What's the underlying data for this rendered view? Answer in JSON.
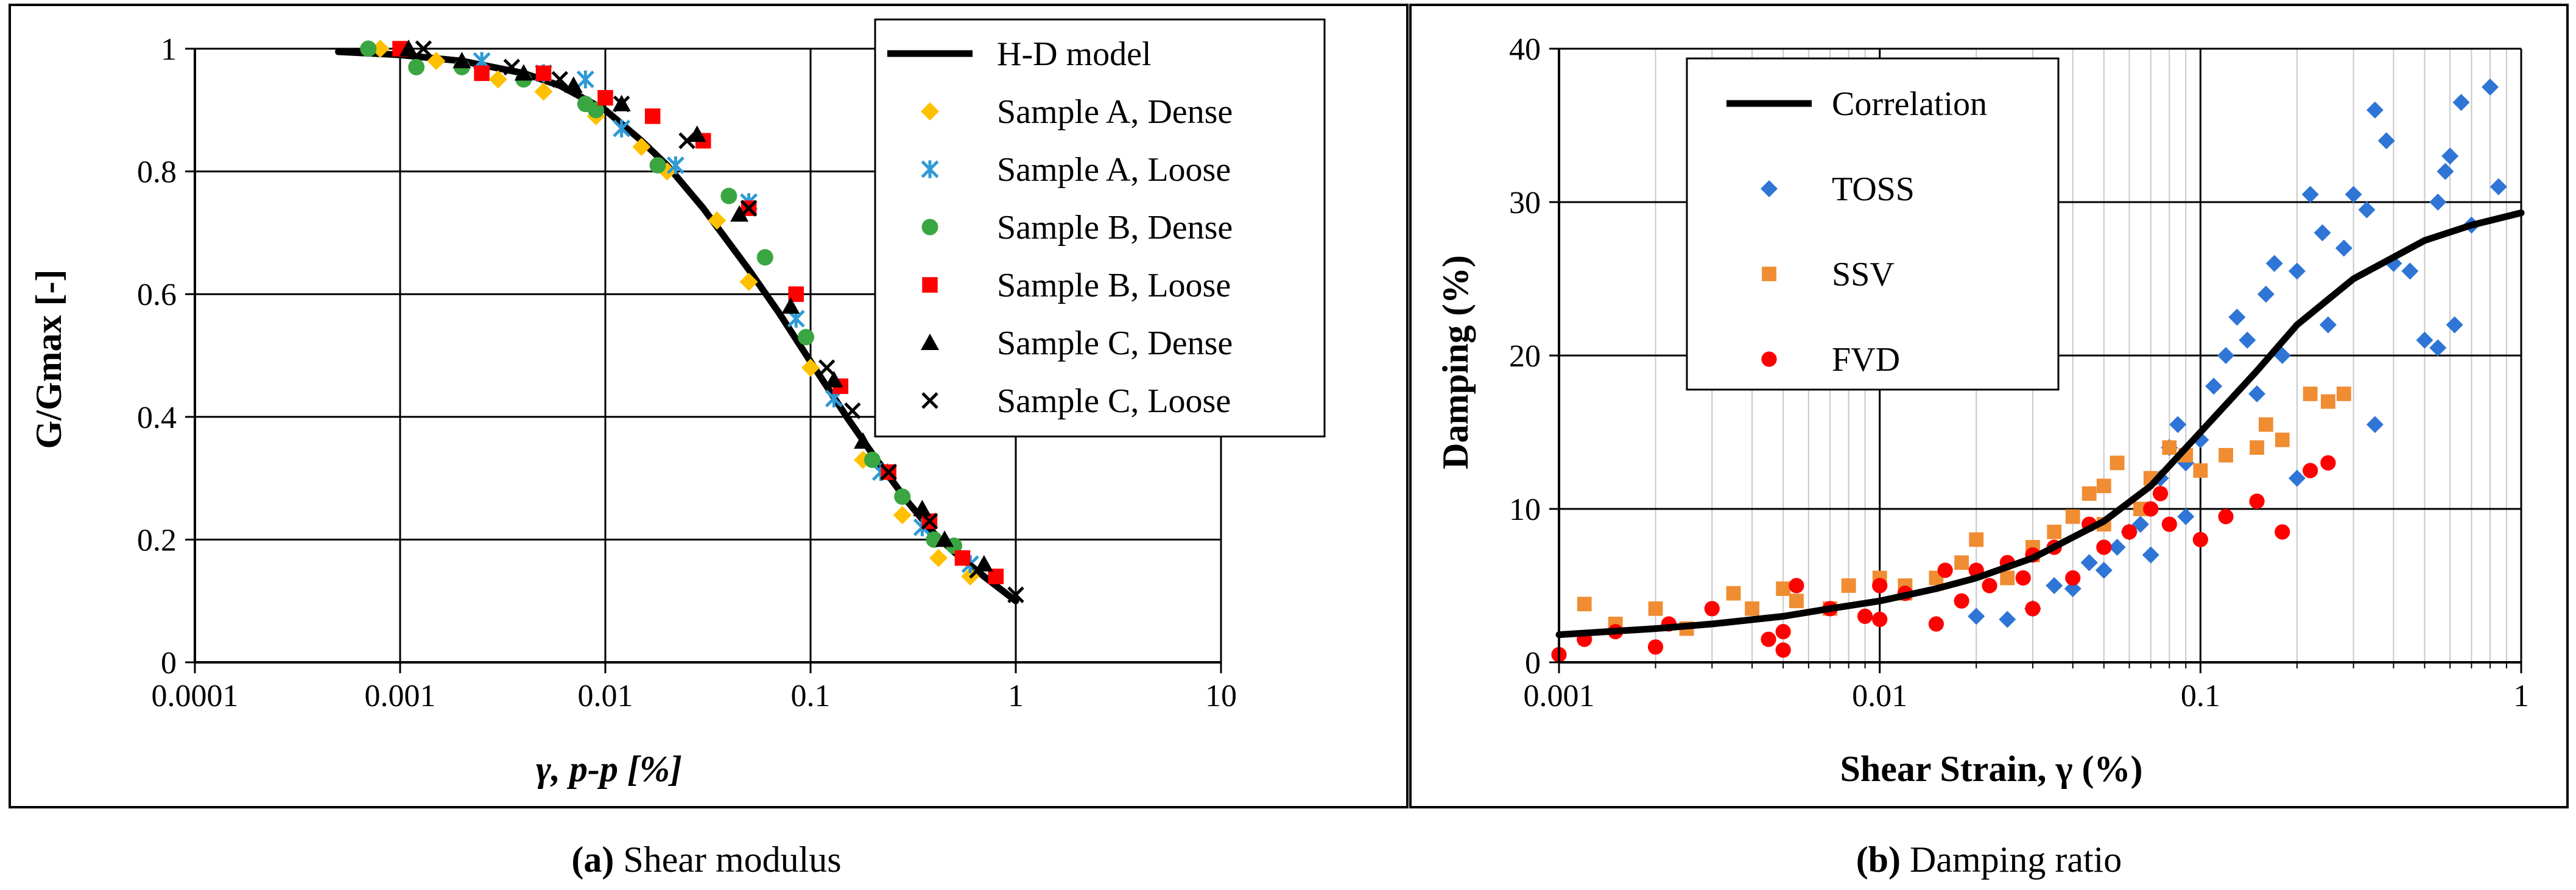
{
  "panels": [
    {
      "caption_letter": "(a)",
      "caption_text": " Shear modulus"
    },
    {
      "caption_letter": "(b)",
      "caption_text": " Damping ratio"
    }
  ],
  "chart_data": [
    {
      "type": "scatter",
      "xscale": "log",
      "xlim": [
        0.0001,
        10
      ],
      "ylim": [
        0,
        1
      ],
      "xticks": [
        0.0001,
        0.001,
        0.01,
        0.1,
        1,
        10
      ],
      "xtick_labels": [
        "0.0001",
        "0.001",
        "0.01",
        "0.1",
        "1",
        "10"
      ],
      "yticks": [
        0,
        0.2,
        0.4,
        0.6,
        0.8,
        1
      ],
      "ytick_labels": [
        "0",
        "0.2",
        "0.4",
        "0.6",
        "0.8",
        "1"
      ],
      "xlabel": "γ, p-p [%]",
      "ylabel": "G/Gmax [-]",
      "grid": "major",
      "legend_position": "top-right",
      "line": {
        "name": "H-D model",
        "color": "#000000",
        "x": [
          0.0005,
          0.001,
          0.002,
          0.004,
          0.006,
          0.01,
          0.015,
          0.02,
          0.03,
          0.05,
          0.07,
          0.1,
          0.15,
          0.2,
          0.3,
          0.4,
          0.5,
          0.7,
          1.0
        ],
        "y": [
          0.995,
          0.99,
          0.98,
          0.96,
          0.94,
          0.9,
          0.85,
          0.81,
          0.74,
          0.64,
          0.57,
          0.49,
          0.4,
          0.34,
          0.26,
          0.21,
          0.18,
          0.14,
          0.1
        ]
      },
      "series": [
        {
          "name": "Sample A, Dense",
          "marker": "diamond",
          "color": "#ffc000",
          "x": [
            0.0008,
            0.0015,
            0.003,
            0.005,
            0.009,
            0.015,
            0.02,
            0.035,
            0.05,
            0.1,
            0.18,
            0.28,
            0.42,
            0.6
          ],
          "y": [
            1.0,
            0.98,
            0.95,
            0.93,
            0.89,
            0.84,
            0.8,
            0.72,
            0.62,
            0.48,
            0.33,
            0.24,
            0.17,
            0.14
          ]
        },
        {
          "name": "Sample A, Loose",
          "marker": "asterisk",
          "color": "#2e9ad6",
          "x": [
            0.0025,
            0.005,
            0.008,
            0.012,
            0.022,
            0.05,
            0.085,
            0.13,
            0.22,
            0.35,
            0.6
          ],
          "y": [
            0.98,
            0.96,
            0.95,
            0.87,
            0.81,
            0.75,
            0.56,
            0.43,
            0.31,
            0.22,
            0.16
          ]
        },
        {
          "name": "Sample B, Dense",
          "marker": "circle",
          "color": "#3aa641",
          "x": [
            0.0007,
            0.0012,
            0.002,
            0.004,
            0.008,
            0.009,
            0.018,
            0.04,
            0.06,
            0.095,
            0.2,
            0.28,
            0.4,
            0.5
          ],
          "y": [
            1.0,
            0.97,
            0.97,
            0.95,
            0.91,
            0.9,
            0.81,
            0.76,
            0.66,
            0.53,
            0.33,
            0.27,
            0.2,
            0.19
          ]
        },
        {
          "name": "Sample B, Loose",
          "marker": "square",
          "color": "#ff0000",
          "x": [
            0.001,
            0.0025,
            0.005,
            0.01,
            0.017,
            0.03,
            0.05,
            0.085,
            0.14,
            0.24,
            0.38,
            0.55,
            0.8
          ],
          "y": [
            1.0,
            0.96,
            0.96,
            0.92,
            0.89,
            0.85,
            0.74,
            0.6,
            0.45,
            0.31,
            0.23,
            0.17,
            0.14
          ]
        },
        {
          "name": "Sample C, Dense",
          "marker": "triangle",
          "color": "#000000",
          "x": [
            0.0011,
            0.002,
            0.004,
            0.007,
            0.012,
            0.028,
            0.045,
            0.08,
            0.13,
            0.18,
            0.35,
            0.45,
            0.7
          ],
          "y": [
            1.0,
            0.98,
            0.96,
            0.94,
            0.91,
            0.86,
            0.73,
            0.58,
            0.46,
            0.36,
            0.25,
            0.2,
            0.16
          ]
        },
        {
          "name": "Sample C, Loose",
          "marker": "cross",
          "color": "#000000",
          "x": [
            0.0013,
            0.0035,
            0.006,
            0.012,
            0.025,
            0.05,
            0.12,
            0.16,
            0.24,
            0.38,
            0.65,
            1.0
          ],
          "y": [
            1.0,
            0.97,
            0.95,
            0.91,
            0.85,
            0.74,
            0.48,
            0.41,
            0.31,
            0.23,
            0.15,
            0.11
          ]
        }
      ]
    },
    {
      "type": "scatter",
      "xscale": "log",
      "xlim": [
        0.001,
        1
      ],
      "ylim": [
        0,
        40
      ],
      "xticks": [
        0.001,
        0.01,
        0.1,
        1
      ],
      "xtick_labels": [
        "0.001",
        "0.01",
        "0.1",
        "1"
      ],
      "yticks": [
        0,
        10,
        20,
        30,
        40
      ],
      "ytick_labels": [
        "0",
        "10",
        "20",
        "30",
        "40"
      ],
      "xlabel": "Shear Strain, γ (%)",
      "ylabel": "Damping  (%)",
      "grid": "major+minor-vertical",
      "legend_position": "top-left",
      "line": {
        "name": "Correlation",
        "color": "#000000",
        "x": [
          0.001,
          0.002,
          0.003,
          0.005,
          0.007,
          0.01,
          0.015,
          0.02,
          0.03,
          0.05,
          0.07,
          0.1,
          0.15,
          0.2,
          0.3,
          0.5,
          0.7,
          1.0
        ],
        "y": [
          1.8,
          2.2,
          2.5,
          3.0,
          3.5,
          4.0,
          4.8,
          5.5,
          6.8,
          9.2,
          11.5,
          15.0,
          19.0,
          22.0,
          25.0,
          27.5,
          28.5,
          29.3
        ]
      },
      "series": [
        {
          "name": "TOSS",
          "marker": "diamond",
          "color": "#2e75d6",
          "x": [
            0.03,
            0.035,
            0.04,
            0.045,
            0.05,
            0.055,
            0.06,
            0.065,
            0.07,
            0.075,
            0.08,
            0.085,
            0.09,
            0.1,
            0.11,
            0.12,
            0.13,
            0.14,
            0.15,
            0.16,
            0.17,
            0.18,
            0.2,
            0.22,
            0.24,
            0.25,
            0.28,
            0.3,
            0.33,
            0.35,
            0.38,
            0.4,
            0.45,
            0.5,
            0.55,
            0.6,
            0.65,
            0.7,
            0.8,
            0.85,
            0.02,
            0.025,
            0.045,
            0.09,
            0.2,
            0.35,
            0.55,
            0.58,
            0.62
          ],
          "y": [
            3.5,
            5.0,
            4.8,
            6.5,
            6.0,
            7.5,
            8.5,
            9.0,
            7.0,
            12.0,
            14.0,
            15.5,
            13.0,
            14.5,
            18.0,
            20.0,
            22.5,
            21.0,
            17.5,
            24.0,
            26.0,
            20.0,
            25.5,
            30.5,
            28.0,
            22.0,
            27.0,
            30.5,
            29.5,
            36.0,
            34.0,
            26.0,
            25.5,
            21.0,
            30.0,
            33.0,
            36.5,
            28.5,
            37.5,
            31.0,
            3.0,
            2.8,
            6.5,
            9.5,
            12.0,
            15.5,
            20.5,
            32.0,
            22.0
          ]
        },
        {
          "name": "SSV",
          "marker": "square",
          "color": "#f08c32",
          "x": [
            0.0012,
            0.0015,
            0.002,
            0.0025,
            0.0035,
            0.005,
            0.0055,
            0.007,
            0.008,
            0.01,
            0.012,
            0.015,
            0.018,
            0.02,
            0.025,
            0.03,
            0.035,
            0.04,
            0.045,
            0.05,
            0.055,
            0.065,
            0.07,
            0.08,
            0.09,
            0.1,
            0.12,
            0.15,
            0.18,
            0.22,
            0.25,
            0.28,
            0.004,
            0.012,
            0.03,
            0.05,
            0.16
          ],
          "y": [
            3.8,
            2.5,
            3.5,
            2.2,
            4.5,
            4.8,
            4.0,
            3.5,
            5.0,
            5.5,
            4.5,
            5.5,
            6.5,
            8.0,
            5.5,
            7.5,
            8.5,
            9.5,
            11.0,
            11.5,
            13.0,
            10.0,
            12.0,
            14.0,
            13.5,
            12.5,
            13.5,
            14.0,
            14.5,
            17.5,
            17.0,
            17.5,
            3.5,
            5.0,
            7.0,
            9.0,
            15.5
          ]
        },
        {
          "name": "FVD",
          "marker": "circle",
          "color": "#ff0000",
          "x": [
            0.001,
            0.0012,
            0.0015,
            0.002,
            0.0022,
            0.003,
            0.0045,
            0.005,
            0.0055,
            0.007,
            0.009,
            0.01,
            0.012,
            0.015,
            0.018,
            0.02,
            0.022,
            0.025,
            0.028,
            0.03,
            0.035,
            0.04,
            0.045,
            0.05,
            0.06,
            0.07,
            0.08,
            0.1,
            0.12,
            0.15,
            0.18,
            0.22,
            0.25,
            0.005,
            0.01,
            0.016,
            0.03,
            0.075
          ],
          "y": [
            0.5,
            1.5,
            2.0,
            1.0,
            2.5,
            3.5,
            1.5,
            2.0,
            5.0,
            3.5,
            3.0,
            5.0,
            4.5,
            2.5,
            4.0,
            6.0,
            5.0,
            6.5,
            5.5,
            7.0,
            7.5,
            5.5,
            9.0,
            7.5,
            8.5,
            10.0,
            9.0,
            8.0,
            9.5,
            10.5,
            8.5,
            12.5,
            13.0,
            0.8,
            2.8,
            6.0,
            3.5,
            11.0
          ]
        }
      ]
    }
  ]
}
